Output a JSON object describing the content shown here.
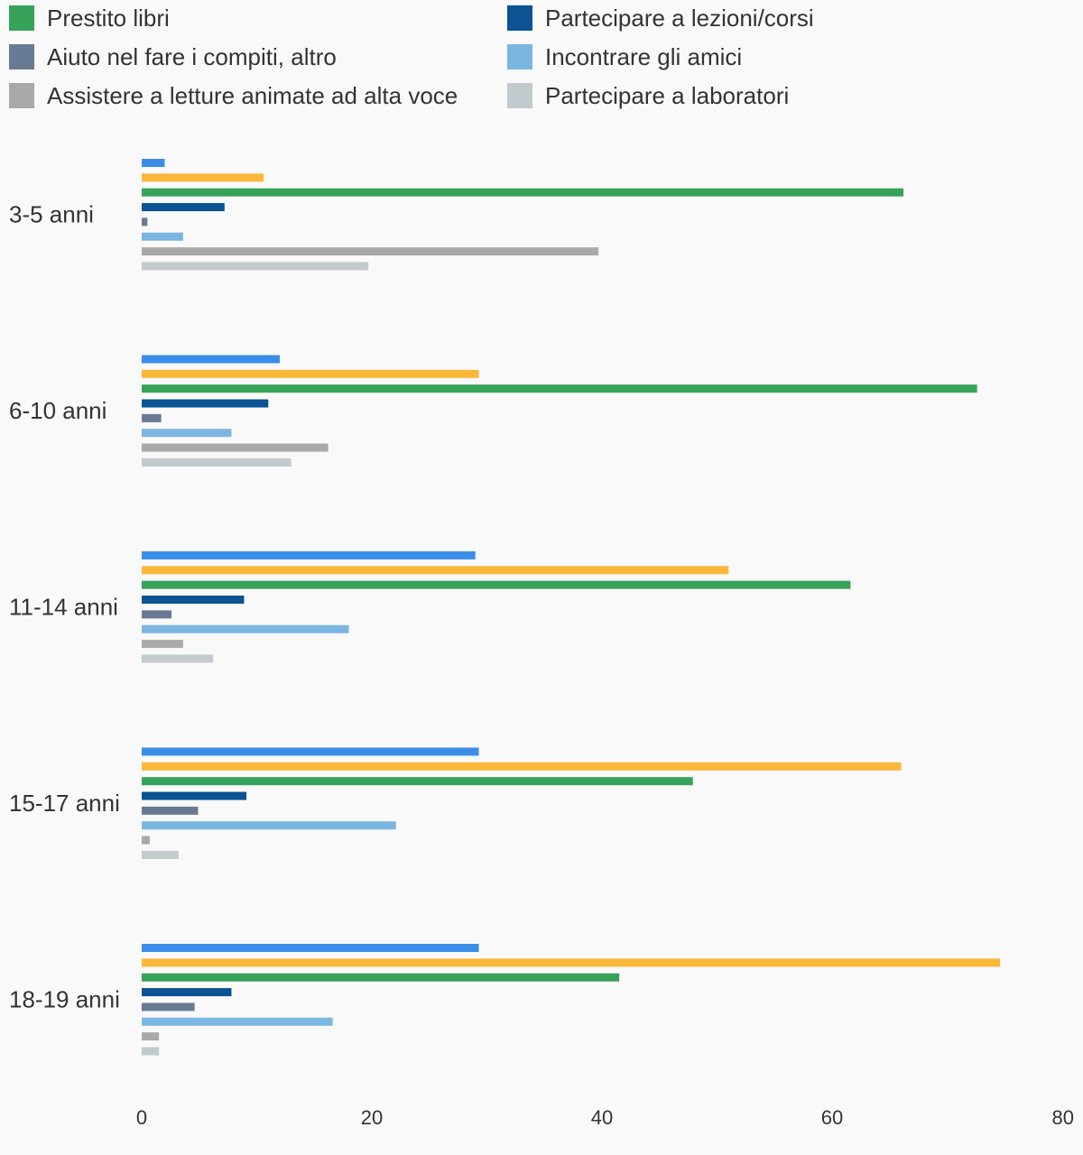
{
  "chart_data": {
    "type": "bar",
    "orientation": "horizontal",
    "title": "",
    "xlabel": "",
    "ylabel": "",
    "categories": [
      "3-5 anni",
      "6-10 anni",
      "11-14 anni",
      "15-17 anni",
      "18-19 anni"
    ],
    "xlim": [
      0,
      80
    ],
    "xticks": [
      "0",
      "20",
      "40",
      "60",
      "80"
    ],
    "grid": false,
    "legend_position": "top",
    "series": [
      {
        "name": "",
        "color": "#3b8ee8",
        "values": [
          2.0,
          12.0,
          29.0,
          29.3,
          29.3
        ]
      },
      {
        "name": "",
        "color": "#fbb73a",
        "values": [
          10.6,
          29.3,
          51.0,
          66.0,
          74.6
        ]
      },
      {
        "name": "Prestito libri",
        "color": "#37a25a",
        "values": [
          66.2,
          72.6,
          61.6,
          47.9,
          41.5
        ]
      },
      {
        "name": "Partecipare a lezioni/corsi",
        "color": "#0b5392",
        "values": [
          7.2,
          11.0,
          8.9,
          9.1,
          7.8
        ]
      },
      {
        "name": "Aiuto nel fare i compiti, altro",
        "color": "#687a94",
        "values": [
          0.5,
          1.7,
          2.6,
          4.9,
          4.6
        ]
      },
      {
        "name": "Incontrare gli amici",
        "color": "#7bb6e0",
        "values": [
          3.6,
          7.8,
          18.0,
          22.1,
          16.6
        ]
      },
      {
        "name": "Assistere a letture animate ad alta voce",
        "color": "#a9a9a9",
        "values": [
          39.7,
          16.2,
          3.6,
          0.7,
          1.5
        ]
      },
      {
        "name": "Partecipare a laboratori",
        "color": "#c1cacd",
        "values": [
          19.7,
          13.0,
          6.2,
          3.2,
          1.5
        ]
      }
    ]
  }
}
